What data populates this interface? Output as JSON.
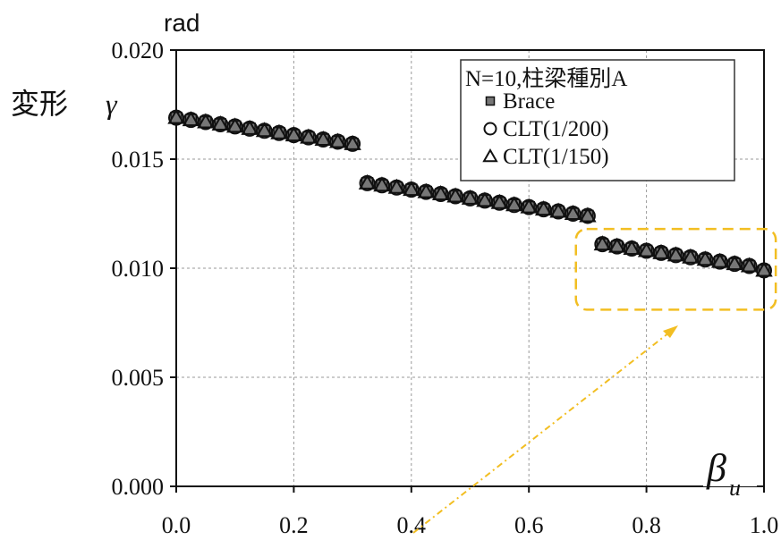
{
  "chart_data": {
    "type": "scatter",
    "unit_label": "rad",
    "ylabel": "変形",
    "ylabel_symbol": "γ",
    "xlabel_symbol": "β",
    "xlabel_subscript": "u",
    "xlim": [
      0.0,
      1.0
    ],
    "ylim": [
      0.0,
      0.02
    ],
    "xticks": [
      "0.0",
      "0.2",
      "0.4",
      "0.6",
      "0.8",
      "1.0"
    ],
    "yticks": [
      "0.000",
      "0.005",
      "0.010",
      "0.015",
      "0.020"
    ],
    "grid": true,
    "legend_position": "top-right",
    "legend_title": "N=10,柱梁種別A",
    "x": [
      0.0,
      0.025,
      0.05,
      0.075,
      0.1,
      0.125,
      0.15,
      0.175,
      0.2,
      0.225,
      0.25,
      0.275,
      0.3,
      0.325,
      0.35,
      0.375,
      0.4,
      0.425,
      0.45,
      0.475,
      0.5,
      0.525,
      0.55,
      0.575,
      0.6,
      0.625,
      0.65,
      0.675,
      0.7,
      0.725,
      0.75,
      0.775,
      0.8,
      0.825,
      0.85,
      0.875,
      0.9,
      0.925,
      0.95,
      0.975,
      1.0
    ],
    "series": [
      {
        "name": "Brace",
        "marker": "square",
        "values": [
          0.0169,
          0.0168,
          0.0167,
          0.0166,
          0.0165,
          0.0164,
          0.0163,
          0.0162,
          0.0161,
          0.016,
          0.0159,
          0.0158,
          0.0157,
          0.0139,
          0.0138,
          0.0137,
          0.0136,
          0.0135,
          0.0134,
          0.0133,
          0.0132,
          0.0131,
          0.013,
          0.0129,
          0.0128,
          0.0127,
          0.0126,
          0.0125,
          0.0124,
          0.0111,
          0.011,
          0.0109,
          0.0108,
          0.0107,
          0.0106,
          0.0105,
          0.0104,
          0.0103,
          0.0102,
          0.0101,
          0.0099
        ]
      },
      {
        "name": "CLT(1/200)",
        "marker": "circle",
        "values": [
          0.0169,
          0.0168,
          0.0167,
          0.0166,
          0.0165,
          0.0164,
          0.0163,
          0.0162,
          0.0161,
          0.016,
          0.0159,
          0.0158,
          0.0157,
          0.0139,
          0.0138,
          0.0137,
          0.0136,
          0.0135,
          0.0134,
          0.0133,
          0.0132,
          0.0131,
          0.013,
          0.0129,
          0.0128,
          0.0127,
          0.0126,
          0.0125,
          0.0124,
          0.0111,
          0.011,
          0.0109,
          0.0108,
          0.0107,
          0.0106,
          0.0105,
          0.0104,
          0.0103,
          0.0102,
          0.0101,
          0.0099
        ]
      },
      {
        "name": "CLT(1/150)",
        "marker": "triangle",
        "values": [
          0.0169,
          0.0168,
          0.0167,
          0.0166,
          0.0165,
          0.0164,
          0.0163,
          0.0162,
          0.0161,
          0.016,
          0.0159,
          0.0158,
          0.0157,
          0.0139,
          0.0138,
          0.0137,
          0.0136,
          0.0135,
          0.0134,
          0.0133,
          0.0132,
          0.0131,
          0.013,
          0.0129,
          0.0128,
          0.0127,
          0.0126,
          0.0125,
          0.0124,
          0.0111,
          0.011,
          0.0109,
          0.0108,
          0.0107,
          0.0106,
          0.0105,
          0.0104,
          0.0103,
          0.0102,
          0.0101,
          0.0099
        ]
      }
    ],
    "highlight_box": {
      "x_range": [
        0.68,
        1.02
      ],
      "y_range": [
        0.0081,
        0.0118
      ],
      "color": "#F2BE22"
    }
  }
}
